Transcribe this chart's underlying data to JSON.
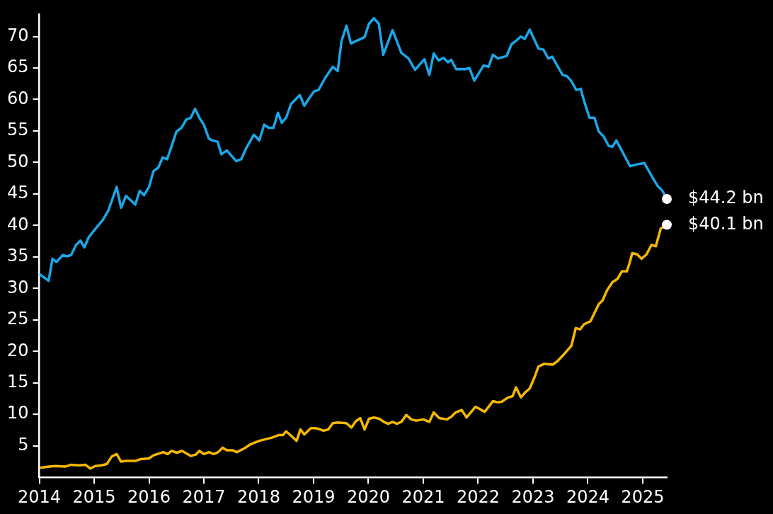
{
  "chart_data": {
    "type": "line",
    "marker": "none",
    "grid": false,
    "legend": false,
    "line_style": "solid",
    "xlim": [
      2014,
      2025.44
    ],
    "xticks": [
      2014,
      2015,
      2016,
      2017,
      2018,
      2019,
      2020,
      2021,
      2022,
      2023,
      2024,
      2025
    ],
    "ylim": [
      0,
      73.5
    ],
    "yticks": [
      5,
      10,
      15,
      20,
      25,
      30,
      35,
      40,
      45,
      50,
      55,
      60,
      65,
      70
    ],
    "series": [
      {
        "color": "#1aa7e8",
        "x": [
          2014.0,
          2014.17,
          2014.24,
          2014.31,
          2014.43,
          2014.5,
          2014.58,
          2014.67,
          2014.75,
          2014.82,
          2014.9,
          2014.99,
          2015.16,
          2015.26,
          2015.41,
          2015.49,
          2015.58,
          2015.75,
          2015.83,
          2015.91,
          2016.0,
          2016.08,
          2016.17,
          2016.25,
          2016.33,
          2016.5,
          2016.59,
          2016.68,
          2016.76,
          2016.84,
          2016.93,
          2017.0,
          2017.09,
          2017.15,
          2017.25,
          2017.32,
          2017.42,
          2017.59,
          2017.68,
          2017.78,
          2017.91,
          2018.01,
          2018.1,
          2018.18,
          2018.27,
          2018.35,
          2018.42,
          2018.5,
          2018.59,
          2018.75,
          2018.83,
          2018.92,
          2019.01,
          2019.09,
          2019.21,
          2019.35,
          2019.44,
          2019.51,
          2019.6,
          2019.68,
          2019.93,
          2020.01,
          2020.1,
          2020.19,
          2020.27,
          2020.44,
          2020.6,
          2020.73,
          2020.85,
          2021.02,
          2021.11,
          2021.19,
          2021.28,
          2021.37,
          2021.45,
          2021.51,
          2021.6,
          2021.76,
          2021.84,
          2021.93,
          2022.1,
          2022.19,
          2022.27,
          2022.36,
          2022.52,
          2022.61,
          2022.69,
          2022.78,
          2022.85,
          2022.94,
          2023.1,
          2023.19,
          2023.28,
          2023.35,
          2023.54,
          2023.62,
          2023.7,
          2023.79,
          2023.87,
          2023.93,
          2024.03,
          2024.12,
          2024.2,
          2024.29,
          2024.38,
          2024.45,
          2024.52,
          2024.77,
          2024.9,
          2025.03,
          2025.16,
          2025.27,
          2025.36,
          2025.44
        ],
        "values": [
          32.3,
          31.2,
          34.7,
          34.2,
          35.3,
          35.1,
          35.3,
          36.9,
          37.6,
          36.5,
          38.1,
          39.1,
          40.9,
          42.4,
          46.1,
          42.8,
          44.7,
          43.3,
          45.5,
          44.8,
          46.1,
          48.6,
          49.2,
          50.8,
          50.5,
          54.9,
          55.5,
          56.8,
          57.1,
          58.5,
          56.9,
          56.0,
          53.8,
          53.5,
          53.3,
          51.3,
          51.9,
          50.2,
          50.5,
          52.4,
          54.4,
          53.5,
          56.0,
          55.5,
          55.5,
          57.9,
          56.3,
          57.1,
          59.3,
          60.7,
          59.0,
          60.2,
          61.3,
          61.5,
          63.4,
          65.2,
          64.5,
          69.3,
          71.7,
          68.9,
          69.9,
          72.0,
          72.9,
          72.0,
          67.1,
          71.0,
          67.4,
          66.5,
          64.7,
          66.4,
          63.9,
          67.3,
          66.2,
          66.6,
          65.9,
          66.3,
          64.8,
          64.8,
          65.0,
          63.0,
          65.4,
          65.2,
          67.1,
          66.5,
          66.9,
          68.8,
          69.3,
          70.0,
          69.6,
          71.1,
          68.1,
          67.9,
          66.5,
          66.8,
          63.9,
          63.7,
          62.9,
          61.5,
          61.7,
          59.8,
          57.1,
          57.1,
          54.9,
          54.1,
          52.6,
          52.5,
          53.5,
          49.4,
          49.7,
          49.9,
          47.9,
          46.3,
          45.5,
          44.2
        ]
      },
      {
        "color": "#f5b800",
        "x": [
          2014.01,
          2014.18,
          2014.3,
          2014.47,
          2014.58,
          2014.73,
          2014.84,
          2014.93,
          2015.02,
          2015.13,
          2015.23,
          2015.32,
          2015.41,
          2015.49,
          2015.58,
          2015.75,
          2015.85,
          2016.0,
          2016.08,
          2016.26,
          2016.34,
          2016.41,
          2016.51,
          2016.6,
          2016.76,
          2016.85,
          2016.92,
          2017.0,
          2017.09,
          2017.18,
          2017.26,
          2017.34,
          2017.42,
          2017.52,
          2017.6,
          2017.74,
          2017.84,
          2018.01,
          2018.24,
          2018.36,
          2018.44,
          2018.5,
          2018.59,
          2018.69,
          2018.76,
          2018.83,
          2018.95,
          2019.03,
          2019.09,
          2019.18,
          2019.27,
          2019.35,
          2019.44,
          2019.6,
          2019.69,
          2019.77,
          2019.85,
          2019.93,
          2020.01,
          2020.1,
          2020.2,
          2020.28,
          2020.36,
          2020.44,
          2020.52,
          2020.6,
          2020.69,
          2020.78,
          2020.87,
          2021.0,
          2021.11,
          2021.19,
          2021.29,
          2021.43,
          2021.51,
          2021.59,
          2021.7,
          2021.79,
          2021.95,
          2022.02,
          2022.12,
          2022.27,
          2022.36,
          2022.43,
          2022.53,
          2022.63,
          2022.69,
          2022.78,
          2022.86,
          2022.94,
          2023.02,
          2023.1,
          2023.2,
          2023.36,
          2023.44,
          2023.54,
          2023.61,
          2023.7,
          2023.78,
          2023.86,
          2023.93,
          2024.05,
          2024.2,
          2024.27,
          2024.35,
          2024.45,
          2024.54,
          2024.62,
          2024.71,
          2024.76,
          2024.81,
          2024.9,
          2024.98,
          2025.07,
          2025.16,
          2025.24,
          2025.33,
          2025.44
        ],
        "values": [
          1.5,
          1.7,
          1.8,
          1.7,
          2.0,
          1.9,
          2.0,
          1.4,
          1.8,
          1.9,
          2.1,
          3.3,
          3.7,
          2.5,
          2.6,
          2.6,
          2.9,
          3.0,
          3.5,
          4.0,
          3.7,
          4.2,
          3.9,
          4.2,
          3.4,
          3.6,
          4.2,
          3.7,
          4.0,
          3.7,
          4.0,
          4.7,
          4.3,
          4.3,
          4.0,
          4.6,
          5.2,
          5.8,
          6.3,
          6.7,
          6.7,
          7.3,
          6.6,
          5.8,
          7.6,
          6.8,
          7.8,
          7.8,
          7.7,
          7.4,
          7.6,
          8.6,
          8.7,
          8.6,
          7.9,
          8.9,
          9.4,
          7.6,
          9.3,
          9.5,
          9.3,
          8.8,
          8.5,
          8.8,
          8.5,
          8.8,
          9.9,
          9.2,
          9.0,
          9.2,
          8.8,
          10.3,
          9.4,
          9.2,
          9.6,
          10.3,
          10.7,
          9.5,
          11.2,
          10.9,
          10.4,
          12.1,
          11.9,
          12.0,
          12.6,
          12.9,
          14.3,
          12.7,
          13.5,
          14.1,
          15.7,
          17.6,
          18.0,
          17.9,
          18.4,
          19.3,
          20.0,
          20.9,
          23.7,
          23.5,
          24.3,
          24.8,
          27.5,
          28.1,
          29.7,
          31.0,
          31.5,
          32.7,
          32.7,
          34.0,
          35.6,
          35.4,
          34.7,
          35.4,
          36.9,
          36.7,
          39.5,
          40.1
        ]
      }
    ],
    "annotations": [
      {
        "text": "$44.2 bn",
        "x": 2025.44,
        "y": 44.2
      },
      {
        "text": "$40.1 bn",
        "x": 2025.44,
        "y": 40.1
      }
    ]
  }
}
